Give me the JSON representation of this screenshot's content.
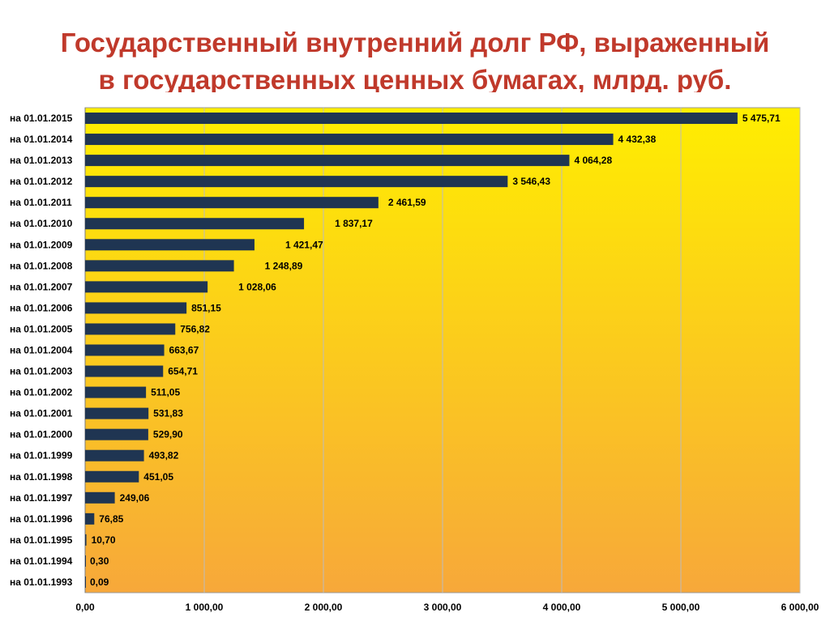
{
  "title": {
    "line1": "Государственный внутренний долг РФ, выраженный",
    "line2": "в государственных ценных бумагах, млрд. руб."
  },
  "colors": {
    "title": "#c0392b",
    "bar": "#1f3552",
    "plot_top": "#ffee00",
    "plot_bottom": "#f7a83a",
    "grid": "#bcbcbc"
  },
  "chart_data": {
    "type": "bar",
    "orientation": "horizontal",
    "categories": [
      "на 01.01.2015",
      "на 01.01.2014",
      "на 01.01.2013",
      "на 01.01.2012",
      "на 01.01.2011",
      "на 01.01.2010",
      "на 01.01.2009",
      "на 01.01.2008",
      "на 01.01.2007",
      "на 01.01.2006",
      "на 01.01.2005",
      "на 01.01.2004",
      "на 01.01.2003",
      "на 01.01.2002",
      "на 01.01.2001",
      "на 01.01.2000",
      "на 01.01.1999",
      "на 01.01.1998",
      "на 01.01.1997",
      "на 01.01.1996",
      "на 01.01.1995",
      "на 01.01.1994",
      "на 01.01.1993"
    ],
    "values": [
      5475.71,
      4432.38,
      4064.28,
      3546.43,
      2461.59,
      1837.17,
      1421.47,
      1248.89,
      1028.06,
      851.15,
      756.82,
      663.67,
      654.71,
      511.05,
      531.83,
      529.9,
      493.82,
      451.05,
      249.06,
      76.85,
      10.7,
      0.3,
      0.09
    ],
    "value_labels": [
      "5 475,71",
      "4 432,38",
      "4 064,28",
      "3 546,43",
      "2 461,59",
      "1 837,17",
      "1 421,47",
      "1 248,89",
      "1 028,06",
      "851,15",
      "756,82",
      "663,67",
      "654,71",
      "511,05",
      "531,83",
      "529,90",
      "493,82",
      "451,05",
      "249,06",
      "76,85",
      "10,70",
      "0,30",
      "0,09"
    ],
    "xlim": [
      0,
      6000
    ],
    "xticks": [
      0,
      1000,
      2000,
      3000,
      4000,
      5000,
      6000
    ],
    "xtick_labels": [
      "0,00",
      "1 000,00",
      "2 000,00",
      "3 000,00",
      "4 000,00",
      "5 000,00",
      "6 000,00"
    ],
    "grid": true,
    "legend": false
  }
}
